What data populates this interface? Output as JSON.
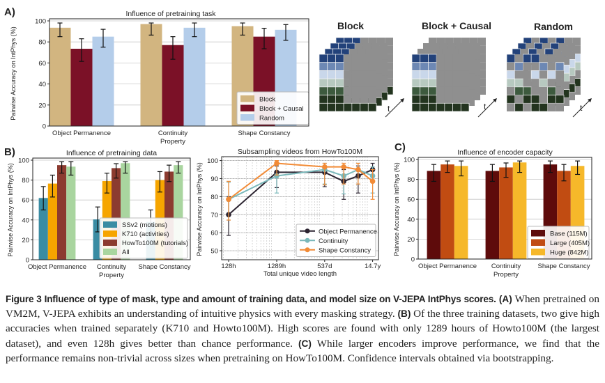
{
  "panels": {
    "a": "A)",
    "b": "B)",
    "c": "C)"
  },
  "masks": {
    "labels": [
      "Block",
      "Block + Causal",
      "Random"
    ],
    "time_label": "t"
  },
  "chart_data": [
    {
      "id": "A",
      "type": "bar",
      "title": "Influence of pretraining task",
      "xlabel": "Property",
      "ylabel": "Pairwise Accuracy on IntPhys (%)",
      "ylim": [
        0,
        100
      ],
      "yticks": [
        0,
        20,
        40,
        60,
        80,
        100
      ],
      "grid": true,
      "legend": "bottom-right",
      "categories": [
        "Object Permanence",
        "Continuity",
        "Shape Constancy"
      ],
      "series": [
        {
          "name": "Block",
          "color": "#d2b580",
          "values": [
            93.5,
            97,
            95
          ],
          "ci": [
            [
              85,
              98
            ],
            [
              86.5,
              98
            ],
            [
              86.5,
              98
            ]
          ]
        },
        {
          "name": "Block + Causal",
          "color": "#7b1127",
          "values": [
            73.5,
            77,
            85
          ],
          "ci": [
            [
              61.5,
              83
            ],
            [
              63.5,
              85
            ],
            [
              73.5,
              93
            ]
          ]
        },
        {
          "name": "Random",
          "color": "#b4cdea",
          "values": [
            85,
            93.5,
            91.5
          ],
          "ci": [
            [
              75,
              92
            ],
            [
              85,
              98
            ],
            [
              81.5,
              96.5
            ]
          ]
        }
      ]
    },
    {
      "id": "B",
      "type": "bar",
      "title": "Influence of pretraining data",
      "xlabel": "Property",
      "ylabel": "Pairwise Accuracy on IntPhys (%)",
      "ylim": [
        0,
        100
      ],
      "yticks": [
        0,
        20,
        40,
        60,
        80,
        100
      ],
      "grid": true,
      "legend": "bottom-right",
      "categories": [
        "Object Permanence",
        "Continuity",
        "Shape Constancy"
      ],
      "series": [
        {
          "name": "SSv2 (motions)",
          "color": "#3a8ca3",
          "values": [
            62,
            40.5,
            38
          ],
          "ci": [
            [
              50,
              73.5
            ],
            [
              28,
              53
            ],
            [
              27,
              50
            ]
          ]
        },
        {
          "name": "K710 (activities)",
          "color": "#f6a500",
          "values": [
            76.5,
            79,
            80
          ],
          "ci": [
            [
              63,
              85
            ],
            [
              67,
              87
            ],
            [
              68,
              88.5
            ]
          ]
        },
        {
          "name": "HowTo100M (tutorials)",
          "color": "#8c3b30",
          "values": [
            95,
            92,
            88.5
          ],
          "ci": [
            [
              87,
              98.5
            ],
            [
              82,
              96.5
            ],
            [
              78.5,
              95
            ]
          ]
        },
        {
          "name": "All",
          "color": "#a9d59f",
          "values": [
            93.5,
            97,
            95
          ],
          "ci": [
            [
              85,
              98.5
            ],
            [
              87,
              98.5
            ],
            [
              87,
              98.5
            ]
          ]
        }
      ]
    },
    {
      "id": "B2",
      "type": "line",
      "title": "Subsampling videos from HowTo100M",
      "xlabel": "Total unique video length",
      "ylabel": "Pairwise Accuracy on IntPhys (%)",
      "xscale": "log",
      "x_hours": [
        128,
        1289,
        12888,
        32200,
        64400,
        128800
      ],
      "xticks": [
        {
          "hours": 128,
          "label": "128h"
        },
        {
          "hours": 1289,
          "label": "1289h"
        },
        {
          "hours": 12888,
          "label": "537d"
        },
        {
          "hours": 128800,
          "label": "14.7y"
        }
      ],
      "ylim": [
        45,
        101
      ],
      "yticks": [
        50,
        60,
        70,
        80,
        90,
        100
      ],
      "grid": true,
      "legend": "bottom-right",
      "series": [
        {
          "name": "Object Permanence",
          "color": "#2c2431",
          "values": [
            70,
            93.5,
            93.5,
            88.5,
            91.5,
            95
          ],
          "ci": [
            [
              58.5,
              80
            ],
            [
              85,
              97
            ],
            [
              85.5,
              96
            ],
            [
              78.5,
              95
            ],
            [
              82,
              97
            ],
            [
              92,
              98.5
            ]
          ]
        },
        {
          "name": "Continuity",
          "color": "#7ab8ba",
          "values": [
            78.5,
            91.5,
            95,
            91.5,
            95,
            91.5
          ],
          "ci": [
            [
              67,
              88
            ],
            [
              82,
              98.5
            ],
            [
              87,
              98.5
            ],
            [
              81.5,
              96.5
            ],
            [
              87,
              98.5
            ],
            [
              82,
              96.5
            ]
          ]
        },
        {
          "name": "Shape Constancy",
          "color": "#f28b36",
          "values": [
            78.5,
            98.5,
            96.5,
            96.5,
            95,
            88.5
          ],
          "ci": [
            [
              67,
              88.5
            ],
            [
              92,
              100
            ],
            [
              86.5,
              98.5
            ],
            [
              87,
              98.5
            ],
            [
              87,
              98.5
            ],
            [
              78.5,
              95
            ]
          ]
        }
      ]
    },
    {
      "id": "C",
      "type": "bar",
      "title": "Influence of encoder capacity",
      "xlabel": "Property",
      "ylabel": "Pairwise Accuracy on IntPhys (%)",
      "ylim": [
        0,
        100
      ],
      "yticks": [
        0,
        20,
        40,
        60,
        80,
        100
      ],
      "grid": true,
      "legend": "bottom-right",
      "categories": [
        "Object Permanence",
        "Continuity",
        "Shape Constancy"
      ],
      "series": [
        {
          "name": "Base (115M)",
          "color": "#5e0b0b",
          "values": [
            88.5,
            88.5,
            95
          ],
          "ci": [
            [
              78,
              95
            ],
            [
              78,
              95
            ],
            [
              87,
              98.5
            ]
          ]
        },
        {
          "name": "Large (405M)",
          "color": "#c14c12",
          "values": [
            95,
            92,
            88.5
          ],
          "ci": [
            [
              87,
              98.5
            ],
            [
              82,
              96.5
            ],
            [
              78.5,
              95
            ]
          ]
        },
        {
          "name": "Huge (842M)",
          "color": "#f6b82a",
          "values": [
            93.5,
            97,
            93.5
          ],
          "ci": [
            [
              83.5,
              98.5
            ],
            [
              87,
              98.5
            ],
            [
              85,
              98.5
            ]
          ]
        }
      ]
    }
  ],
  "caption": {
    "head": "Figure 3  Influence of type of mask, type and amount of training data, and model size on V-JEPA IntPhys scores.",
    "a_label": "(A)",
    "a_text": " When pretrained on VM2M, V-JEPA exhibits an understanding of intuitive physics with every masking strategy. ",
    "b_label": "(B)",
    "b_text": " Of the three training datasets, two give high accuracies when trained separately (K710 and Howto100M). High scores are found with only 1289 hours of Howto100M (the largest dataset), and even 128h gives better than chance performance. ",
    "c_label": "(C)",
    "c_text": " While larger encoders improve performance, we find that the performance remains non-trivial across sizes when pretraining on HowTo100M. Confidence intervals obtained via bootstrapping."
  }
}
